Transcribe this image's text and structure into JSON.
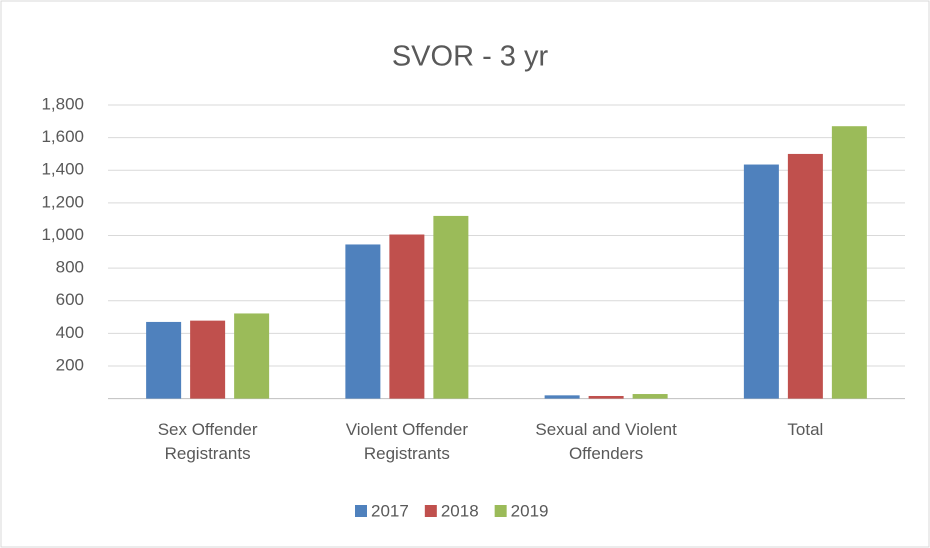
{
  "chart_data": {
    "type": "bar",
    "title": "SVOR - 3 yr",
    "categories": [
      "Sex Offender Registrants",
      "Violent Offender Registrants",
      "Sexual and Violent Offenders",
      "Total"
    ],
    "series": [
      {
        "name": "2017",
        "color": "#4f81bd",
        "values": [
          470,
          945,
          20,
          1435
        ]
      },
      {
        "name": "2018",
        "color": "#c0504d",
        "values": [
          478,
          1006,
          16,
          1500
        ]
      },
      {
        "name": "2019",
        "color": "#9bbb59",
        "values": [
          522,
          1120,
          28,
          1670
        ]
      }
    ],
    "ylim": [
      0,
      1800
    ],
    "yticks": [
      200,
      400,
      600,
      800,
      {
        "value": 1000,
        "label": "1,000"
      },
      {
        "value": 1200,
        "label": "1,200"
      },
      {
        "value": 1400,
        "label": "1,400"
      },
      {
        "value": 1600,
        "label": "1,600"
      },
      {
        "value": 1800,
        "label": "1,800"
      }
    ],
    "grid": true,
    "legend": "bottom"
  }
}
